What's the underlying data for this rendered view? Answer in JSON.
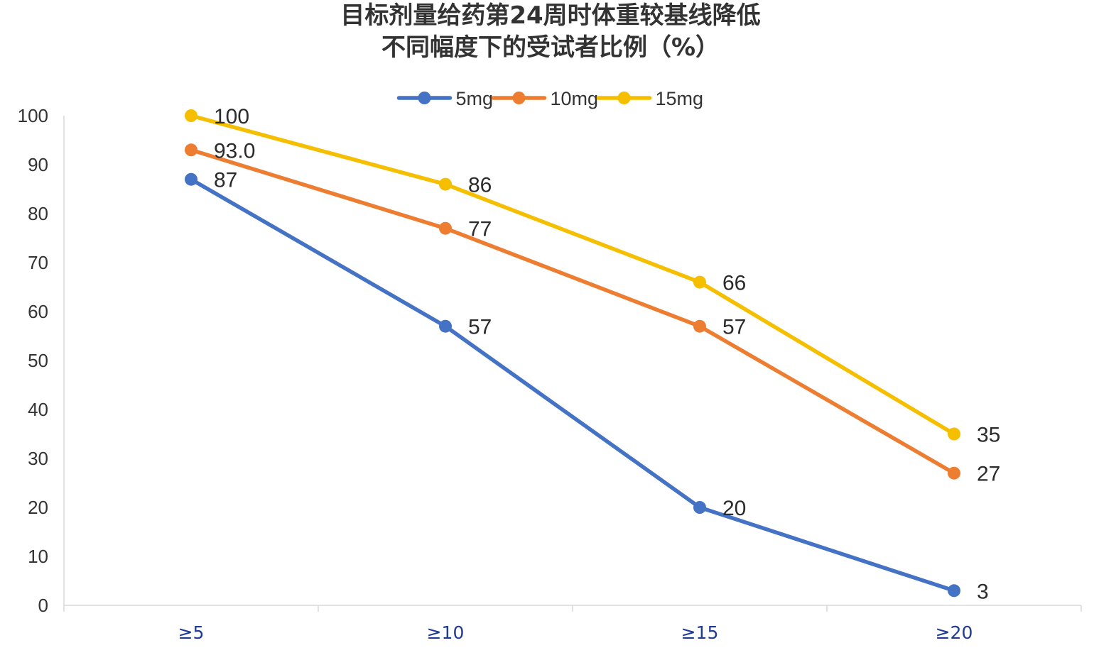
{
  "chart_data": {
    "type": "line",
    "title": [
      "目标剂量给药第24周时体重较基线降低",
      "不同幅度下的受试者比例（%）"
    ],
    "categories": [
      "≥5",
      "≥10",
      "≥15",
      "≥20"
    ],
    "ylim": [
      0,
      100
    ],
    "yticks": [
      "0",
      "10",
      "20",
      "30",
      "40",
      "50",
      "60",
      "70",
      "80",
      "90",
      "100"
    ],
    "grid": false,
    "legend": "top-center",
    "series": [
      {
        "name": "5mg",
        "color": "#4472c4",
        "values": [
          87,
          57,
          20,
          3
        ],
        "labels": [
          "87",
          "57",
          "20",
          "3"
        ]
      },
      {
        "name": "10mg",
        "color": "#ed7d31",
        "values": [
          93,
          77,
          57,
          27
        ],
        "labels": [
          "93.0",
          "77",
          "57",
          "27"
        ]
      },
      {
        "name": "15mg",
        "color": "#f5bf00",
        "values": [
          100,
          86,
          66,
          35
        ],
        "labels": [
          "100",
          "86",
          "66",
          "35"
        ]
      }
    ]
  }
}
